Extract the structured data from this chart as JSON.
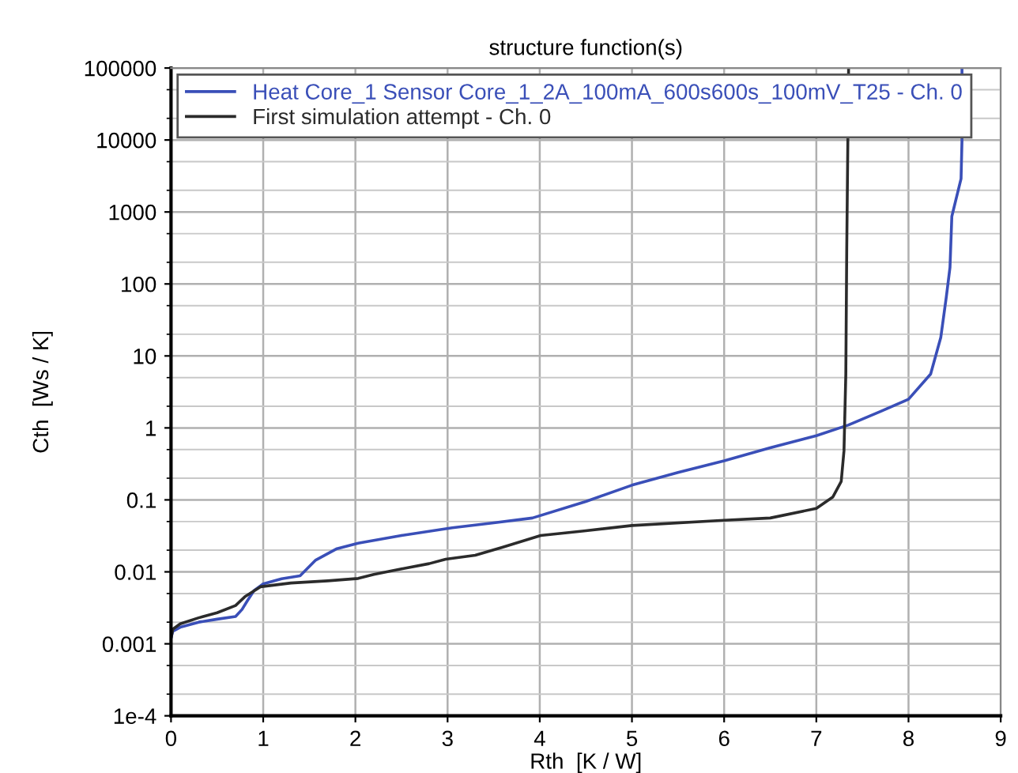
{
  "chart_data": {
    "type": "line",
    "title": "structure function(s)",
    "xlabel": "Rth  [K / W]",
    "ylabel": "Cth  [Ws / K]",
    "log": "y",
    "xlim": [
      0,
      9
    ],
    "xticks": [
      0,
      1,
      2,
      3,
      4,
      5,
      6,
      7,
      8,
      9
    ],
    "ylim": [
      0.0001,
      100000
    ],
    "yticks": [
      {
        "value": 0.0001,
        "label": "1e-4"
      },
      0.001,
      0.01,
      0.1,
      1,
      10,
      100,
      1000,
      10000,
      100000
    ],
    "grid": true,
    "legend": "top left",
    "line_style": "solid",
    "marker": "none",
    "series": [
      {
        "name": "Heat Core_1 Sensor Core_1_2A_100mA_600s600s_100mV_T25 - Ch. 0",
        "color": "#3a4fb8",
        "x": [
          0,
          0.02,
          0.1,
          0.3,
          0.5,
          0.7,
          0.77,
          0.83,
          0.9,
          1.0,
          1.2,
          1.4,
          1.57,
          1.8,
          2.03,
          2.5,
          3.05,
          3.5,
          3.92,
          4.5,
          5,
          5.5,
          6,
          6.5,
          7,
          7.35,
          7.7,
          8,
          8.24,
          8.35,
          8.41,
          8.45,
          8.47,
          8.57,
          8.58,
          8.58
        ],
        "values": [
          0.0012,
          0.0015,
          0.0017,
          0.002,
          0.0022,
          0.0024,
          0.003,
          0.004,
          0.0055,
          0.0068,
          0.008,
          0.0088,
          0.0146,
          0.021,
          0.025,
          0.032,
          0.041,
          0.048,
          0.056,
          0.095,
          0.16,
          0.24,
          0.35,
          0.53,
          0.78,
          1.1,
          1.7,
          2.5,
          5.6,
          18,
          66,
          170,
          870,
          2900,
          9800,
          100000
        ]
      },
      {
        "name": "First simulation attempt - Ch. 0",
        "color": "#2b2b2b",
        "x": [
          0,
          0.02,
          0.1,
          0.3,
          0.5,
          0.7,
          0.8,
          0.97,
          1.3,
          1.7,
          2.03,
          2.2,
          2.5,
          2.8,
          2.98,
          3.3,
          3.6,
          4.01,
          4.48,
          5,
          6,
          6.5,
          7,
          7.18,
          7.27,
          7.3,
          7.32,
          7.33,
          7.35
        ],
        "values": [
          0.0012,
          0.0016,
          0.0019,
          0.0023,
          0.0027,
          0.0034,
          0.0045,
          0.0062,
          0.007,
          0.0075,
          0.0081,
          0.0092,
          0.011,
          0.013,
          0.015,
          0.017,
          0.022,
          0.032,
          0.037,
          0.044,
          0.052,
          0.056,
          0.076,
          0.11,
          0.18,
          0.48,
          5.6,
          300,
          100000
        ]
      }
    ]
  }
}
